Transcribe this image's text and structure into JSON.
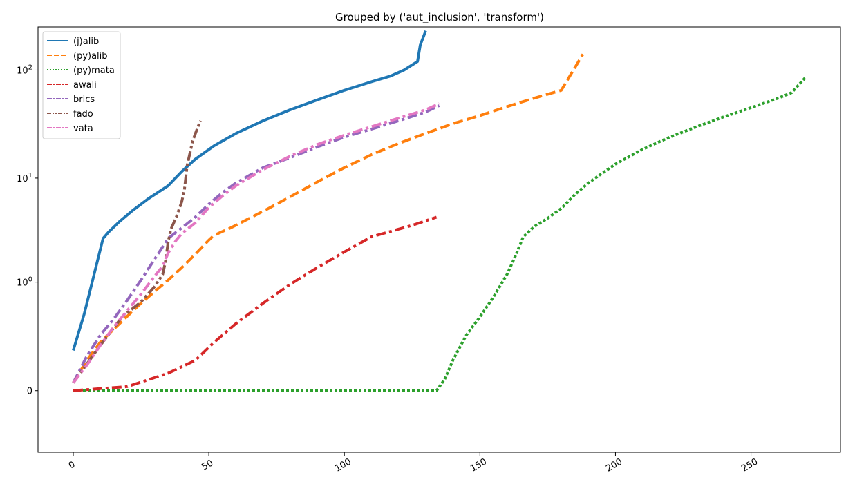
{
  "chart_data": {
    "type": "line",
    "title": "Grouped by ('aut_inclusion', 'transform')",
    "xlabel": "",
    "ylabel": "",
    "xlim": [
      -13,
      283
    ],
    "ylim": [
      -0.3,
      250
    ],
    "yscale": "symlog",
    "grid": false,
    "legend_position": "top-left",
    "x_ticks": [
      0,
      50,
      100,
      150,
      200,
      250
    ],
    "x_tick_labels": [
      "0",
      "50",
      "100",
      "150",
      "200",
      "250"
    ],
    "y_ticks": [
      0,
      1,
      10,
      100
    ],
    "y_tick_labels": [
      "0",
      "10^0",
      "10^1",
      "10^2"
    ],
    "series": [
      {
        "name": "(j)alib",
        "color": "#1f77b4",
        "dash": "solid",
        "x": [
          0,
          4,
          8,
          11,
          13,
          17,
          22,
          28,
          35,
          40,
          45,
          52,
          60,
          70,
          80,
          90,
          100,
          110,
          117,
          122,
          127,
          128,
          130
        ],
        "y": [
          0.15,
          0.45,
          1.3,
          2.7,
          3.1,
          3.9,
          5.0,
          6.5,
          8.5,
          11.5,
          15,
          20,
          26,
          34,
          43,
          53,
          65,
          78,
          88,
          100,
          120,
          170,
          230
        ]
      },
      {
        "name": "(py)alib",
        "color": "#ff7f0e",
        "dash": "dashed",
        "x": [
          0,
          5,
          10,
          15,
          20,
          25,
          30,
          35,
          40,
          45,
          50,
          52,
          58,
          65,
          72,
          80,
          90,
          100,
          110,
          120,
          130,
          140,
          150,
          160,
          170,
          180,
          188
        ],
        "y": [
          0.02,
          0.1,
          0.2,
          0.3,
          0.43,
          0.6,
          0.8,
          1.05,
          1.4,
          1.9,
          2.6,
          2.9,
          3.4,
          4.2,
          5.2,
          6.7,
          9.2,
          12.5,
          16.5,
          21,
          26,
          32,
          38,
          46,
          55,
          65,
          140
        ]
      },
      {
        "name": "(py)mata",
        "color": "#2ca02c",
        "dash": "dotted",
        "x": [
          0,
          50,
          100,
          134,
          137,
          140,
          145,
          150,
          155,
          160,
          163,
          166,
          170,
          175,
          180,
          185,
          190,
          200,
          210,
          220,
          230,
          240,
          250,
          260,
          265,
          270
        ],
        "y": [
          0,
          0,
          0,
          0,
          0.03,
          0.1,
          0.25,
          0.42,
          0.7,
          1.2,
          1.8,
          2.8,
          3.5,
          4.2,
          5.2,
          7.0,
          9.0,
          13.5,
          18.5,
          24,
          30,
          37,
          45,
          55,
          62,
          85
        ]
      },
      {
        "name": "awali",
        "color": "#d62728",
        "dash": "dashdot",
        "x": [
          0,
          20,
          35,
          45,
          52,
          60,
          70,
          80,
          90,
          100,
          110,
          118,
          125,
          134
        ],
        "y": [
          0,
          0.01,
          0.05,
          0.1,
          0.2,
          0.35,
          0.6,
          0.95,
          1.4,
          2.0,
          2.8,
          3.2,
          3.6,
          4.3
        ]
      },
      {
        "name": "brics",
        "color": "#9467bd",
        "dash": "dashdot",
        "x": [
          0,
          5,
          10,
          15,
          20,
          25,
          30,
          35,
          40,
          45,
          50,
          55,
          60,
          70,
          80,
          90,
          100,
          110,
          120,
          130,
          135
        ],
        "y": [
          0.02,
          0.12,
          0.25,
          0.4,
          0.65,
          1.05,
          1.7,
          2.7,
          3.4,
          4.3,
          5.7,
          7.3,
          9.0,
          12.5,
          15.5,
          19.5,
          24,
          28.5,
          34,
          41,
          47
        ]
      },
      {
        "name": "fado",
        "color": "#8c564b",
        "dash": "dashdotdot",
        "x": [
          0,
          10,
          18,
          25,
          30,
          33,
          34,
          35,
          36,
          38,
          40,
          41,
          42,
          44,
          46,
          47
        ],
        "y": [
          0.02,
          0.18,
          0.42,
          0.62,
          0.9,
          1.2,
          1.6,
          2.5,
          3.3,
          4.3,
          6.0,
          7.8,
          13,
          22,
          30,
          34
        ]
      },
      {
        "name": "vata",
        "color": "#e377c2",
        "dash": "dashdot",
        "x": [
          0,
          5,
          10,
          15,
          20,
          25,
          30,
          33,
          35,
          38,
          40,
          45,
          50,
          55,
          60,
          70,
          80,
          90,
          100,
          110,
          120,
          130,
          135
        ],
        "y": [
          0.02,
          0.08,
          0.18,
          0.32,
          0.5,
          0.75,
          1.15,
          1.45,
          1.95,
          2.6,
          3.0,
          3.8,
          5.3,
          6.8,
          8.5,
          12,
          16,
          20.5,
          25,
          30,
          36,
          43,
          49
        ]
      }
    ]
  }
}
